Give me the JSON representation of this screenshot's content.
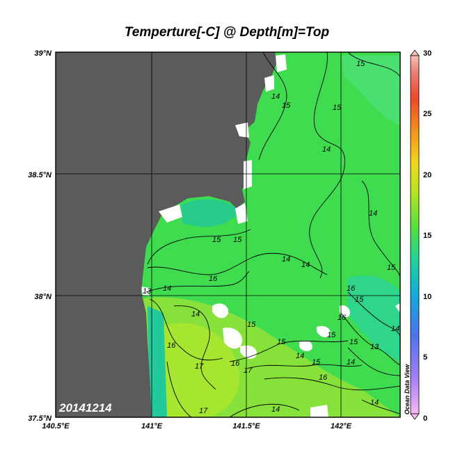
{
  "title": "Temperture[-C] @ Depth[m]=Top",
  "date_stamp": "20141214",
  "watermark": "Ocean Data View",
  "lat_ticks": [
    "39°N",
    "38.5°N",
    "38°N",
    "37.5°N"
  ],
  "lon_ticks": [
    "140.5°E",
    "141°E",
    "141.5°E",
    "142°E"
  ],
  "colorbar": {
    "ticks": [
      "30",
      "25",
      "20",
      "15",
      "10",
      "5",
      "0"
    ],
    "min": 0,
    "max": 30,
    "colors": [
      "#f6a6f2",
      "#9a7cf5",
      "#3f7fe8",
      "#12b8d8",
      "#2ee08a",
      "#9ae82a",
      "#e6e01a",
      "#f4a21a",
      "#ef5a22",
      "#e84040",
      "#f6b0a8"
    ]
  },
  "contour_labels": [
    "15",
    "14",
    "15",
    "15",
    "14",
    "14",
    "15",
    "15",
    "14",
    "14",
    "15",
    "16",
    "14",
    "16",
    "15",
    "13",
    "14",
    "16",
    "15",
    "14",
    "16",
    "15",
    "15",
    "16",
    "17",
    "14",
    "15",
    "15",
    "16",
    "14",
    "17",
    "17",
    "14",
    "13",
    "14"
  ],
  "colors": {
    "land": "#5b5b5b",
    "grid": "#000000",
    "water_main": "#3ddc52",
    "water_warm": "#8fe634",
    "water_cool": "#1fc7a0"
  }
}
